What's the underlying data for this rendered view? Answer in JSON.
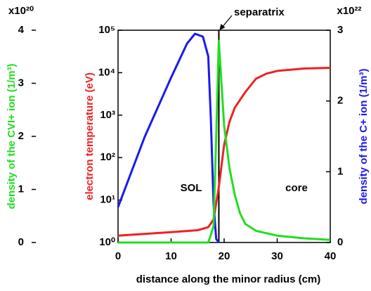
{
  "chart_data": {
    "type": "line",
    "xlabel": "distance along the minor radius (cm)",
    "ylabel": "electron temperature (eV)",
    "y2label": "density of the C+ ion (1/m³)",
    "y3label": "density of the CVI+ ion (1/m³)",
    "y2multiplier": "x10²²",
    "y3multiplier": "x10²⁰",
    "xlim": [
      0,
      40
    ],
    "xticks": [
      0,
      10,
      20,
      30,
      40
    ],
    "ylim": [
      1,
      100000
    ],
    "yscale": "log",
    "yticks": [
      {
        "value": 1,
        "label": "10⁰"
      },
      {
        "value": 10,
        "label": "10¹"
      },
      {
        "value": 100,
        "label": "10²"
      },
      {
        "value": 1000,
        "label": "10³"
      },
      {
        "value": 10000,
        "label": "10⁴"
      },
      {
        "value": 100000,
        "label": "10⁵"
      }
    ],
    "y2lim": [
      0,
      3
    ],
    "y2ticks": [
      0,
      1,
      2,
      3
    ],
    "y3lim": [
      0,
      4
    ],
    "y3ticks": [
      0,
      1,
      2,
      3,
      4
    ],
    "annotations": [
      {
        "text": "separatrix",
        "x": 19
      },
      {
        "text": "SOL"
      },
      {
        "text": "core"
      }
    ],
    "series": [
      {
        "name": "electron temperature",
        "color": "#ee2222",
        "axis": "y",
        "x": [
          0,
          5,
          10,
          15,
          17,
          18,
          19,
          20,
          21,
          22,
          24,
          26,
          28,
          30,
          35,
          40
        ],
        "values": [
          1.45,
          1.6,
          1.75,
          1.95,
          2.3,
          3.5,
          20,
          200,
          700,
          1500,
          3500,
          7200,
          9500,
          11000,
          12500,
          13000
        ]
      },
      {
        "name": "C+ ion density",
        "color": "#1a1aee",
        "axis": "y2",
        "x": [
          0,
          5,
          10,
          13,
          14.5,
          16,
          17,
          17.5,
          18,
          18.5,
          19
        ],
        "values": [
          0.5,
          1.49,
          2.33,
          2.81,
          2.95,
          2.91,
          2.63,
          1.74,
          0.55,
          0.05,
          0
        ]
      },
      {
        "name": "CVI+ ion density",
        "color": "#22dd22",
        "axis": "y3",
        "x": [
          0,
          10,
          17,
          18,
          18.5,
          19,
          20,
          21,
          22,
          23,
          24,
          26,
          30,
          35,
          40
        ],
        "values": [
          0,
          0,
          0,
          0.3,
          2,
          3.8,
          2.2,
          1.4,
          0.9,
          0.55,
          0.35,
          0.22,
          0.13,
          0.08,
          0.05
        ]
      }
    ]
  }
}
